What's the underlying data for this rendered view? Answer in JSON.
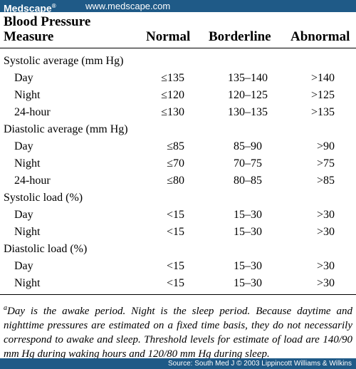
{
  "header": {
    "brand": "Medscape",
    "brand_mark": "®",
    "site": "www.medscape.com"
  },
  "table": {
    "col_measure_line1": "Blood Pressure",
    "col_measure_line2": "Measure",
    "col_normal": "Normal",
    "col_borderline": "Borderline",
    "col_abnormal": "Abnormal",
    "rows": [
      {
        "type": "group",
        "label": "Systolic average (mm Hg)"
      },
      {
        "type": "item",
        "label": "Day",
        "normal": "≤135",
        "borderline": "135–140",
        "abnormal": ">140"
      },
      {
        "type": "item",
        "label": "Night",
        "normal": "≤120",
        "borderline": "120–125",
        "abnormal": ">125"
      },
      {
        "type": "item",
        "label": "24-hour",
        "normal": "≤130",
        "borderline": "130–135",
        "abnormal": ">135"
      },
      {
        "type": "group",
        "label": "Diastolic average (mm Hg)"
      },
      {
        "type": "item",
        "label": "Day",
        "normal": "≤85",
        "borderline": "85–90",
        "abnormal": ">90"
      },
      {
        "type": "item",
        "label": "Night",
        "normal": "≤70",
        "borderline": "70–75",
        "abnormal": ">75"
      },
      {
        "type": "item",
        "label": "24-hour",
        "normal": "≤80",
        "borderline": "80–85",
        "abnormal": ">85"
      },
      {
        "type": "group",
        "label": "Systolic load (%)"
      },
      {
        "type": "item",
        "label": "Day",
        "normal": "<15",
        "borderline": "15–30",
        "abnormal": ">30"
      },
      {
        "type": "item",
        "label": "Night",
        "normal": "<15",
        "borderline": "15–30",
        "abnormal": ">30"
      },
      {
        "type": "group",
        "label": "Diastolic load (%)"
      },
      {
        "type": "item",
        "label": "Day",
        "normal": "<15",
        "borderline": "15–30",
        "abnormal": ">30"
      },
      {
        "type": "item",
        "label": "Night",
        "normal": "<15",
        "borderline": "15–30",
        "abnormal": ">30"
      }
    ]
  },
  "footnote": {
    "marker": "a",
    "text": "Day is the awake period. Night is the sleep period. Because daytime and nighttime pressures are estimated on a fixed time basis, they do not necessarily correspond to awake and sleep. Threshold levels for estimate of load are 140/90 mm Hg during waking hours and 120/80 mm Hg during sleep."
  },
  "footer": {
    "source": "Source: South Med J © 2003 Lippincott Williams & Wilkins"
  },
  "colors": {
    "bar": "#1f5a87",
    "bar_text": "#ffffff"
  }
}
